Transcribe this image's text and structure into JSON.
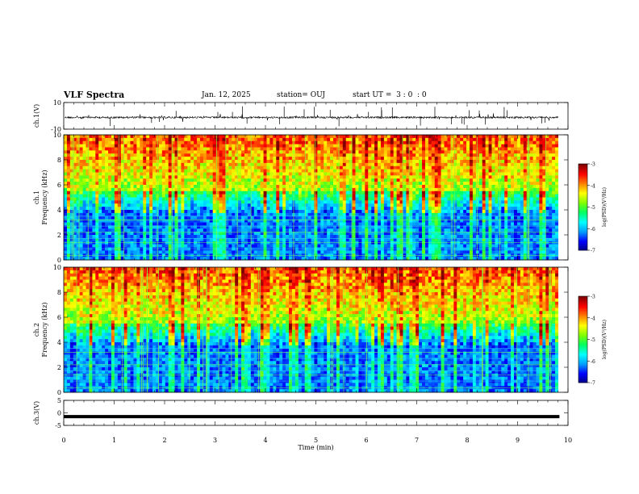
{
  "header": {
    "title": "VLF Spectra",
    "date": "Jan. 12, 2025",
    "station": "station= OUJ",
    "start": "start UT =  3 : 0  : 0"
  },
  "chart_data": [
    {
      "type": "line",
      "panel": "ch1-waveform",
      "ylabel": "ch.1(V)",
      "ylim": [
        -10,
        10
      ],
      "yticks": [
        "10",
        "-10"
      ],
      "xlim": [
        0,
        10
      ]
    },
    {
      "type": "heatmap",
      "panel": "ch1-spectrogram",
      "ylabel": "ch.1\nFrequency (kHz)",
      "ylabel_line1": "ch.1",
      "ylabel_line2": "Frequency (kHz)",
      "ylim": [
        0,
        10
      ],
      "yticks": [
        "0",
        "2",
        "4",
        "6",
        "8",
        "10"
      ],
      "xlim": [
        0,
        10
      ],
      "colorbar": {
        "label": "log(PSD)(V²/Hz)",
        "ticks": [
          "-3",
          "-4",
          "-5",
          "-6",
          "-7"
        ],
        "range": [
          -7,
          -3
        ]
      }
    },
    {
      "type": "heatmap",
      "panel": "ch2-spectrogram",
      "ylabel": "ch.2\nFrequency (kHz)",
      "ylabel_line1": "ch.2",
      "ylabel_line2": "Frequency (kHz)",
      "ylim": [
        0,
        10
      ],
      "yticks": [
        "0",
        "2",
        "4",
        "6",
        "8",
        "10"
      ],
      "xlim": [
        0,
        10
      ],
      "colorbar": {
        "label": "log(PSD)(V²/Hz)",
        "ticks": [
          "-3",
          "-4",
          "-5",
          "-6",
          "-7"
        ],
        "range": [
          -7,
          -3
        ]
      }
    },
    {
      "type": "line",
      "panel": "ch3-waveform",
      "ylabel": "ch.3(V)",
      "ylim": [
        -5,
        5
      ],
      "yticks": [
        "5",
        "0",
        "-5"
      ],
      "xlim": [
        0,
        10
      ],
      "xlabel": "Time (min)",
      "xticks": [
        "0",
        "1",
        "2",
        "3",
        "4",
        "5",
        "6",
        "7",
        "8",
        "9",
        "10"
      ],
      "series": [
        {
          "x": [
            0,
            9.83
          ],
          "y": [
            -1.5,
            -1.5
          ]
        }
      ]
    }
  ],
  "colors": {
    "scale": [
      "#000080",
      "#0000ff",
      "#00a0ff",
      "#00ffff",
      "#00ff60",
      "#80ff00",
      "#ffff00",
      "#ff8000",
      "#ff0000",
      "#800000"
    ]
  }
}
